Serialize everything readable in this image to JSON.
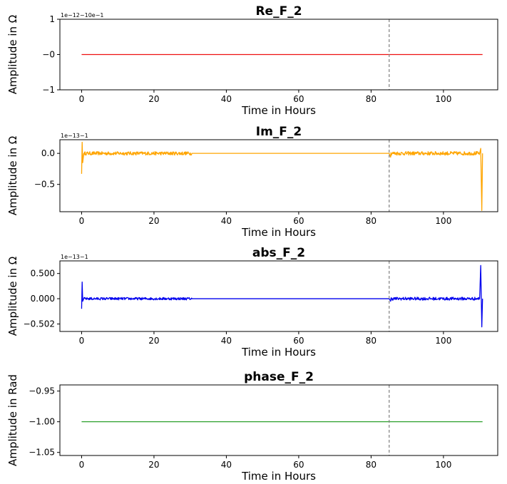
{
  "vline_x": 85,
  "chart_data": [
    {
      "type": "line",
      "title": "Re_F_2",
      "xlabel": "Time in Hours",
      "ylabel": "Amplitude in Ω",
      "offset_label": "1e−12−10e−1",
      "xlim": [
        -6,
        115
      ],
      "ylim": [
        -1,
        1
      ],
      "xticks": [
        0,
        20,
        40,
        60,
        80,
        100
      ],
      "xtick_labels": [
        "0",
        "20",
        "40",
        "60",
        "80",
        "100"
      ],
      "yticks": [
        1,
        0,
        -1
      ],
      "ytick_labels": [
        "1",
        "−0",
        "−1"
      ],
      "color": "#ee1111",
      "series": [
        {
          "name": "Re_F_2",
          "x": [
            0,
            110.8
          ],
          "values": [
            0,
            0
          ]
        }
      ]
    },
    {
      "type": "line",
      "title": "Im_F_2",
      "xlabel": "Time in Hours",
      "ylabel": "Amplitude in Ω",
      "offset_label": "1e−13−1",
      "xlim": [
        -6,
        115
      ],
      "ylim": [
        -0.94,
        0.22
      ],
      "xticks": [
        0,
        20,
        40,
        60,
        80,
        100
      ],
      "xtick_labels": [
        "0",
        "20",
        "40",
        "60",
        "80",
        "100"
      ],
      "yticks": [
        0,
        -0.5
      ],
      "ytick_labels": [
        "0.0",
        "−0.5"
      ],
      "color": "#ffa500",
      "series": [
        {
          "name": "Im_F_2",
          "x": [
            0,
            0.15,
            0.3,
            0.6,
            30.5,
            85,
            85.4,
            110,
            110.3,
            110.6,
            110.8
          ],
          "values": [
            -0.33,
            0.18,
            -0.15,
            0,
            0,
            0,
            -0.06,
            0,
            0.08,
            -0.92,
            0
          ]
        }
      ],
      "noise_segments": [
        [
          0.6,
          30.5,
          0.028
        ],
        [
          85.4,
          110,
          0.03
        ]
      ]
    },
    {
      "type": "line",
      "title": "abs_F_2",
      "xlabel": "Time in Hours",
      "ylabel": "Amplitude in Ω",
      "offset_label": "1e−13−1",
      "xlim": [
        -6,
        115
      ],
      "ylim": [
        -0.65,
        0.75
      ],
      "xticks": [
        0,
        20,
        40,
        60,
        80,
        100
      ],
      "xtick_labels": [
        "0",
        "20",
        "40",
        "60",
        "80",
        "100"
      ],
      "yticks": [
        0.5,
        0,
        -0.502
      ],
      "ytick_labels": [
        "0.500",
        "0.000",
        "−0.502"
      ],
      "color": "#0000ee",
      "series": [
        {
          "name": "abs_F_2",
          "x": [
            0,
            0.15,
            0.3,
            0.6,
            30.5,
            85,
            85.4,
            110,
            110.3,
            110.6,
            110.8
          ],
          "values": [
            -0.2,
            0.33,
            -0.05,
            0,
            0,
            0,
            -0.05,
            0,
            0.66,
            -0.56,
            0
          ]
        }
      ],
      "noise_segments": [
        [
          0.6,
          30.5,
          0.025
        ],
        [
          85.4,
          110,
          0.03
        ]
      ]
    },
    {
      "type": "line",
      "title": "phase_F_2",
      "xlabel": "Time in Hours",
      "ylabel": "Amplitude in Rad",
      "offset_label": "",
      "xlim": [
        -6,
        115
      ],
      "ylim": [
        -1.055,
        -0.94
      ],
      "xticks": [
        0,
        20,
        40,
        60,
        80,
        100
      ],
      "xtick_labels": [
        "0",
        "20",
        "40",
        "60",
        "80",
        "100"
      ],
      "yticks": [
        -0.95,
        -1.0,
        -1.05
      ],
      "ytick_labels": [
        "−0.95",
        "−1.00",
        "−1.05"
      ],
      "color": "#2ca02c",
      "series": [
        {
          "name": "phase_F_2",
          "x": [
            0,
            110.8
          ],
          "values": [
            -1,
            -1
          ]
        }
      ]
    }
  ]
}
